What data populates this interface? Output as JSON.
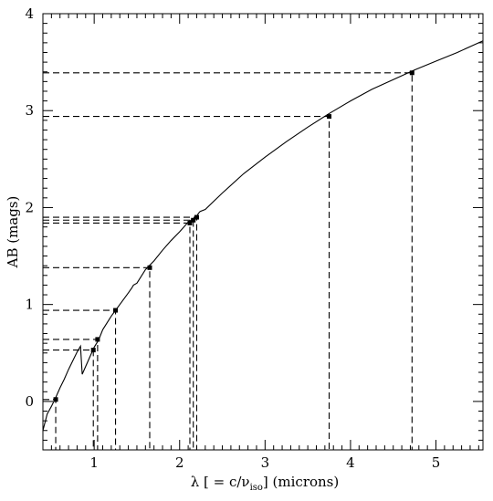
{
  "chart_data": {
    "type": "line",
    "xlabel": {
      "prefix": "λ [ = c/ν",
      "subscript": "iso",
      "suffix": "] (microns)"
    },
    "ylabel": "AB (mags)",
    "xlim": [
      0.4,
      5.55
    ],
    "ylim": [
      -0.5,
      4.0
    ],
    "xticks": [
      1,
      2,
      3,
      4,
      5
    ],
    "yticks": [
      0,
      1,
      2,
      3,
      4
    ],
    "minor_x_step": 0.1,
    "minor_y_step": 0.1,
    "grid": false,
    "series": [
      {
        "style": "solid",
        "x": [
          0.4,
          0.45,
          0.5,
          0.55,
          0.6,
          0.65,
          0.7,
          0.75,
          0.8,
          0.84,
          0.86,
          0.88,
          0.92,
          0.96,
          1.0,
          1.05,
          1.1,
          1.2,
          1.3,
          1.4,
          1.44,
          1.46,
          1.5,
          1.6,
          1.7,
          1.8,
          1.9,
          2.0,
          2.1,
          2.2,
          2.22,
          2.24,
          2.3,
          2.5,
          2.75,
          3.0,
          3.25,
          3.5,
          3.75,
          4.0,
          4.25,
          4.5,
          4.75,
          5.0,
          5.25,
          5.55
        ],
        "y": [
          -0.3,
          -0.13,
          -0.05,
          0.04,
          0.14,
          0.23,
          0.33,
          0.42,
          0.51,
          0.57,
          0.28,
          0.32,
          0.4,
          0.48,
          0.56,
          0.63,
          0.74,
          0.88,
          1.0,
          1.12,
          1.17,
          1.2,
          1.22,
          1.36,
          1.45,
          1.56,
          1.66,
          1.75,
          1.85,
          1.91,
          1.94,
          1.96,
          1.98,
          2.15,
          2.35,
          2.52,
          2.68,
          2.83,
          2.97,
          3.1,
          3.22,
          3.32,
          3.42,
          3.51,
          3.6,
          3.72
        ]
      }
    ],
    "markers": [
      {
        "x": 0.55,
        "y": 0.02
      },
      {
        "x": 0.99,
        "y": 0.53
      },
      {
        "x": 1.04,
        "y": 0.64
      },
      {
        "x": 1.25,
        "y": 0.94
      },
      {
        "x": 1.65,
        "y": 1.38
      },
      {
        "x": 2.12,
        "y": 1.84
      },
      {
        "x": 2.16,
        "y": 1.87
      },
      {
        "x": 2.2,
        "y": 1.9
      },
      {
        "x": 3.75,
        "y": 2.94
      },
      {
        "x": 4.72,
        "y": 3.39
      }
    ]
  }
}
